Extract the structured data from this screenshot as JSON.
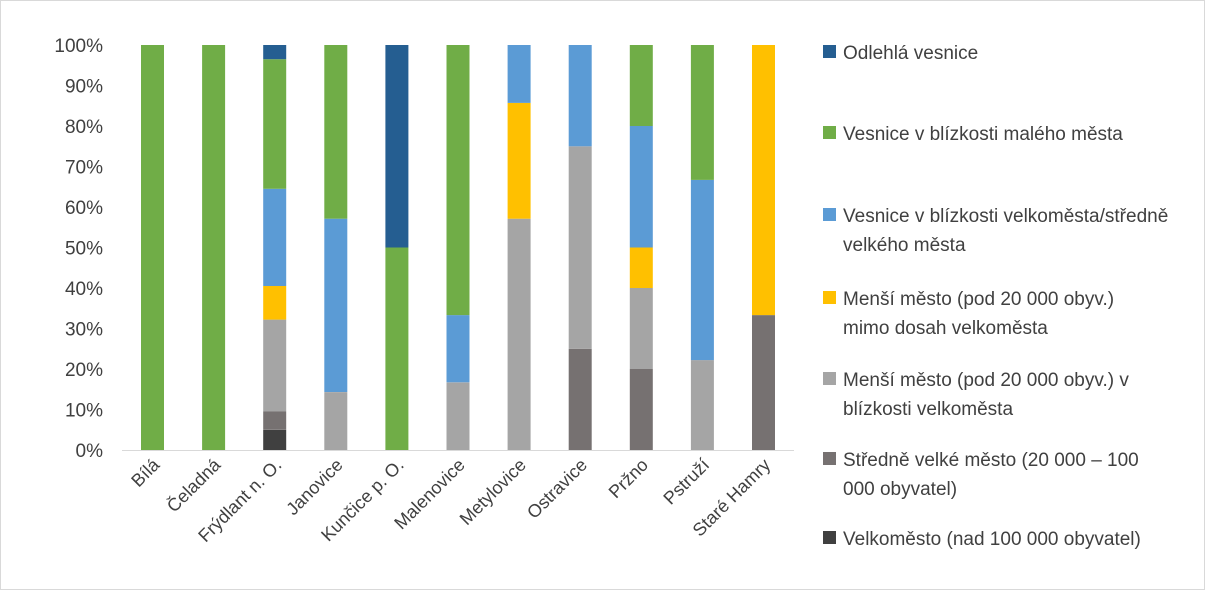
{
  "chart_data": {
    "type": "bar",
    "stacked": true,
    "percent": true,
    "categories": [
      "Bílá",
      "Čeladná",
      "Frýdlant n. O.",
      "Janovice",
      "Kunčice p. O.",
      "Malenovice",
      "Metylovice",
      "Ostravice",
      "Pržno",
      "Pstruží",
      "Staré Hamry"
    ],
    "yticks": [
      "0%",
      "10%",
      "20%",
      "30%",
      "40%",
      "50%",
      "60%",
      "70%",
      "80%",
      "90%",
      "100%"
    ],
    "ylim": [
      0,
      100
    ],
    "grid": false,
    "legend_position": "right",
    "series": [
      {
        "name": "Velkoměsto (nad 100 000 obyvatel)",
        "color": "#404040",
        "values": [
          0,
          0,
          5,
          0,
          0,
          0,
          0,
          0,
          0,
          0,
          0
        ]
      },
      {
        "name": "Středně velké město (20 000 – 100 000 obyvatel)",
        "color": "#767171",
        "values": [
          0,
          0,
          4.5,
          0,
          0,
          0,
          0,
          25,
          20,
          0,
          33.3
        ]
      },
      {
        "name": "Menší město (pod 20 000 obyv.) v blízkosti velkoměsta",
        "color": "#a5a5a5",
        "values": [
          0,
          0,
          22.7,
          14.3,
          0,
          16.7,
          57.1,
          50,
          20,
          22.2,
          0
        ]
      },
      {
        "name": "Menší město (pod 20 000 obyv.) mimo dosah velkoměsta",
        "color": "#ffc000",
        "values": [
          0,
          0,
          8.3,
          0,
          0,
          0,
          28.6,
          0,
          10,
          0,
          66.7
        ]
      },
      {
        "name": "Vesnice v blízkosti velkoměsta/středně velkého města",
        "color": "#5b9bd5",
        "values": [
          0,
          0,
          24,
          42.8,
          0,
          16.6,
          14.3,
          25,
          30,
          44.5,
          0
        ]
      },
      {
        "name": "Vesnice v blízkosti malého města",
        "color": "#70ad47",
        "values": [
          100,
          100,
          32,
          42.9,
          50,
          66.7,
          0,
          0,
          20,
          33.3,
          0
        ]
      },
      {
        "name": "Odlehlá vesnice",
        "color": "#255e91",
        "values": [
          0,
          0,
          3.5,
          0,
          50,
          0,
          0,
          0,
          0,
          0,
          0
        ]
      }
    ],
    "legend": [
      {
        "label": "Odlehlá vesnice",
        "color": "#255e91"
      },
      {
        "label": "Vesnice v blízkosti malého města",
        "color": "#70ad47"
      },
      {
        "label": "Vesnice v blízkosti velkoměsta/středně velkého města",
        "color": "#5b9bd5"
      },
      {
        "label": "Menší město (pod 20 000 obyv.) mimo dosah velkoměsta",
        "color": "#ffc000"
      },
      {
        "label": "Menší město (pod 20 000 obyv.) v blízkosti velkoměsta",
        "color": "#a5a5a5"
      },
      {
        "label": "Středně velké město (20 000 – 100 000 obyvatel)",
        "color": "#767171"
      },
      {
        "label": "Velkoměsto (nad 100 000 obyvatel)",
        "color": "#404040"
      }
    ]
  }
}
